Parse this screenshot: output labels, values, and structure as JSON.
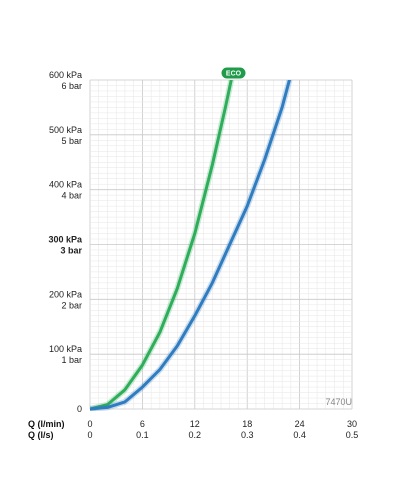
{
  "chart_data": {
    "type": "line",
    "title": "",
    "x_primary": {
      "label": "Q (l/min)",
      "ticks": [
        "0",
        "6",
        "12",
        "18",
        "24",
        "30"
      ],
      "range": [
        0,
        30
      ]
    },
    "x_secondary": {
      "label": "Q (l/s)",
      "ticks": [
        "0",
        "0.1",
        "0.2",
        "0.3",
        "0.4",
        "0.5"
      ]
    },
    "y": {
      "range": [
        0,
        600
      ],
      "unit": "kPa",
      "ticks": [
        {
          "value": 0,
          "kpa": "0",
          "bar": ""
        },
        {
          "value": 100,
          "kpa": "100 kPa",
          "bar": "1 bar"
        },
        {
          "value": 200,
          "kpa": "200 kPa",
          "bar": "2 bar"
        },
        {
          "value": 300,
          "kpa": "300 kPa",
          "bar": "3 bar",
          "bold": true
        },
        {
          "value": 400,
          "kpa": "400 kPa",
          "bar": "4 bar"
        },
        {
          "value": 500,
          "kpa": "500 kPa",
          "bar": "5 bar"
        },
        {
          "value": 600,
          "kpa": "600 kPa",
          "bar": "6 bar"
        }
      ]
    },
    "grid": true,
    "series": [
      {
        "name": "ECO",
        "color": "#2eae5a",
        "points": [
          [
            0,
            0
          ],
          [
            2,
            8
          ],
          [
            4,
            35
          ],
          [
            6,
            80
          ],
          [
            8,
            140
          ],
          [
            10,
            220
          ],
          [
            12,
            320
          ],
          [
            14,
            445
          ],
          [
            15.5,
            550
          ],
          [
            16.3,
            610
          ]
        ]
      },
      {
        "name": "",
        "color": "#2f7dc0",
        "points": [
          [
            0,
            0
          ],
          [
            2,
            3
          ],
          [
            4,
            13
          ],
          [
            6,
            40
          ],
          [
            8,
            72
          ],
          [
            10,
            115
          ],
          [
            12,
            170
          ],
          [
            14,
            230
          ],
          [
            16,
            300
          ],
          [
            18,
            370
          ],
          [
            20,
            455
          ],
          [
            22,
            550
          ],
          [
            23,
            610
          ]
        ]
      }
    ],
    "product_code": "7470U",
    "badge": "ECO"
  }
}
